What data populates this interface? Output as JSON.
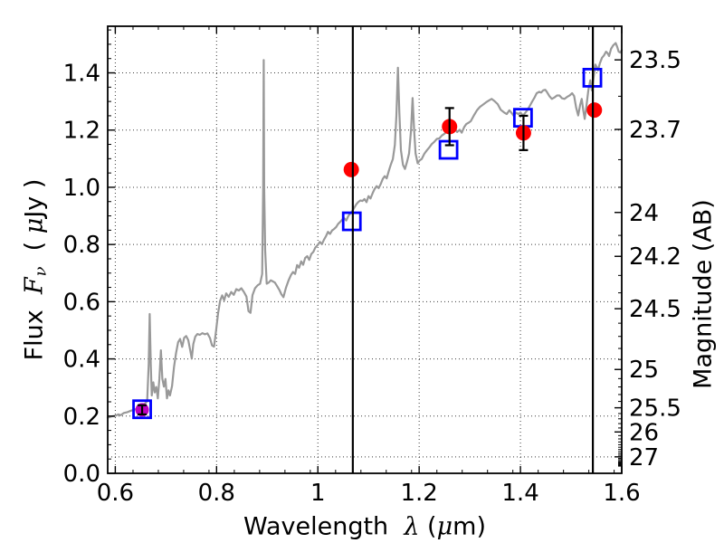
{
  "figure": {
    "background": "#ffffff",
    "xlabel": {
      "t1": "Wavelength  ",
      "m1": "λ",
      "t2": " (",
      "m2": "μ",
      "t3": "m)"
    },
    "ylabel_left": {
      "t1": "Flux  ",
      "f": "F",
      "sub": "ν",
      "t2": "  ( ",
      "mu": "μ",
      "t3": "Jy )"
    },
    "ylabel_right": "Magnitude (AB)"
  },
  "chart_data": {
    "type": "line",
    "title": "",
    "xlabel": "Wavelength λ (μm)",
    "ylabel_left": "Flux Fν ( μJy )",
    "ylabel_right": "Magnitude (AB)",
    "xlim": [
      0.585,
      1.6
    ],
    "ylim_flux": [
      0.0,
      1.563
    ],
    "grid": "dotted",
    "grid_color": "#3a3a3a",
    "frame_color": "#000000",
    "mag_zero_point_uJy": 23.9,
    "axes_rect": [
      119,
      29,
      687,
      523
    ],
    "x_ticks": {
      "values": [
        0.6,
        0.8,
        1.0,
        1.2,
        1.4,
        1.6
      ],
      "labels": [
        "0.6",
        "0.8",
        "1",
        "1.2",
        "1.4",
        "1.6"
      ],
      "minor_step": 0.05
    },
    "y_ticks_left": {
      "values": [
        0.0,
        0.2,
        0.4,
        0.6,
        0.8,
        1.0,
        1.2,
        1.4
      ],
      "labels": [
        "0.0",
        "0.2",
        "0.4",
        "0.6",
        "0.8",
        "1.0",
        "1.2",
        "1.4"
      ],
      "minor_step": 0.05
    },
    "y_ticks_right": {
      "mags": [
        23.5,
        23.7,
        24.0,
        24.2,
        24.5,
        25.0,
        25.5,
        26.0,
        27.0
      ],
      "labels": [
        "23.5",
        "23.7",
        "24",
        "24.2",
        "24.5",
        "25",
        "25.5",
        "26",
        "27"
      ],
      "minor_step": 0.1,
      "grid_mags": [
        27.0
      ]
    },
    "vlines": {
      "x": [
        1.069,
        1.543
      ],
      "color": "#000000",
      "width": 2.2
    },
    "errorbar": {
      "color": "#000000",
      "width": 2.2,
      "cap_halfwidth": 5
    },
    "series": [
      {
        "name": "model-spectrum",
        "kind": "line",
        "color": "#999999",
        "width": 2.2,
        "points": [
          [
            0.585,
            0.195
          ],
          [
            0.593,
            0.199
          ],
          [
            0.6,
            0.201
          ],
          [
            0.606,
            0.206
          ],
          [
            0.611,
            0.203
          ],
          [
            0.617,
            0.211
          ],
          [
            0.624,
            0.214
          ],
          [
            0.631,
            0.219
          ],
          [
            0.638,
            0.223
          ],
          [
            0.645,
            0.227
          ],
          [
            0.652,
            0.231
          ],
          [
            0.658,
            0.243
          ],
          [
            0.663,
            0.252
          ],
          [
            0.666,
            0.38
          ],
          [
            0.668,
            0.557
          ],
          [
            0.67,
            0.38
          ],
          [
            0.672,
            0.272
          ],
          [
            0.675,
            0.318
          ],
          [
            0.678,
            0.283
          ],
          [
            0.681,
            0.302
          ],
          [
            0.684,
            0.262
          ],
          [
            0.687,
            0.33
          ],
          [
            0.69,
            0.43
          ],
          [
            0.693,
            0.33
          ],
          [
            0.696,
            0.303
          ],
          [
            0.699,
            0.33
          ],
          [
            0.702,
            0.262
          ],
          [
            0.705,
            0.29
          ],
          [
            0.708,
            0.272
          ],
          [
            0.712,
            0.305
          ],
          [
            0.716,
            0.372
          ],
          [
            0.72,
            0.42
          ],
          [
            0.724,
            0.458
          ],
          [
            0.728,
            0.47
          ],
          [
            0.732,
            0.442
          ],
          [
            0.736,
            0.474
          ],
          [
            0.74,
            0.48
          ],
          [
            0.744,
            0.466
          ],
          [
            0.748,
            0.43
          ],
          [
            0.751,
            0.401
          ],
          [
            0.754,
            0.452
          ],
          [
            0.758,
            0.478
          ],
          [
            0.762,
            0.487
          ],
          [
            0.767,
            0.484
          ],
          [
            0.772,
            0.49
          ],
          [
            0.777,
            0.486
          ],
          [
            0.782,
            0.489
          ],
          [
            0.787,
            0.473
          ],
          [
            0.791,
            0.447
          ],
          [
            0.795,
            0.443
          ],
          [
            0.799,
            0.5
          ],
          [
            0.803,
            0.56
          ],
          [
            0.807,
            0.603
          ],
          [
            0.811,
            0.622
          ],
          [
            0.815,
            0.605
          ],
          [
            0.819,
            0.629
          ],
          [
            0.824,
            0.617
          ],
          [
            0.829,
            0.634
          ],
          [
            0.834,
            0.624
          ],
          [
            0.839,
            0.644
          ],
          [
            0.844,
            0.639
          ],
          [
            0.849,
            0.647
          ],
          [
            0.854,
            0.634
          ],
          [
            0.859,
            0.618
          ],
          [
            0.863,
            0.567
          ],
          [
            0.867,
            0.561
          ],
          [
            0.871,
            0.623
          ],
          [
            0.876,
            0.647
          ],
          [
            0.881,
            0.657
          ],
          [
            0.886,
            0.663
          ],
          [
            0.89,
            0.697
          ],
          [
            0.892,
            1.0
          ],
          [
            0.893,
            1.445
          ],
          [
            0.894,
            1.0
          ],
          [
            0.896,
            0.78
          ],
          [
            0.899,
            0.663
          ],
          [
            0.903,
            0.667
          ],
          [
            0.907,
            0.675
          ],
          [
            0.911,
            0.671
          ],
          [
            0.915,
            0.667
          ],
          [
            0.919,
            0.656
          ],
          [
            0.924,
            0.641
          ],
          [
            0.928,
            0.626
          ],
          [
            0.932,
            0.616
          ],
          [
            0.937,
            0.649
          ],
          [
            0.942,
            0.674
          ],
          [
            0.947,
            0.694
          ],
          [
            0.951,
            0.704
          ],
          [
            0.955,
            0.697
          ],
          [
            0.959,
            0.728
          ],
          [
            0.963,
            0.719
          ],
          [
            0.967,
            0.741
          ],
          [
            0.971,
            0.729
          ],
          [
            0.975,
            0.753
          ],
          [
            0.979,
            0.759
          ],
          [
            0.983,
            0.746
          ],
          [
            0.987,
            0.767
          ],
          [
            0.991,
            0.774
          ],
          [
            0.995,
            0.789
          ],
          [
            1.0,
            0.799
          ],
          [
            1.004,
            0.809
          ],
          [
            1.008,
            0.801
          ],
          [
            1.012,
            0.817
          ],
          [
            1.016,
            0.829
          ],
          [
            1.02,
            0.844
          ],
          [
            1.024,
            0.837
          ],
          [
            1.028,
            0.849
          ],
          [
            1.032,
            0.854
          ],
          [
            1.036,
            0.861
          ],
          [
            1.04,
            0.872
          ],
          [
            1.044,
            0.879
          ],
          [
            1.048,
            0.887
          ],
          [
            1.052,
            0.892
          ],
          [
            1.056,
            0.884
          ],
          [
            1.06,
            0.899
          ],
          [
            1.064,
            0.909
          ],
          [
            1.068,
            0.917
          ],
          [
            1.072,
            0.929
          ],
          [
            1.076,
            0.941
          ],
          [
            1.08,
            0.949
          ],
          [
            1.084,
            0.954
          ],
          [
            1.088,
            0.952
          ],
          [
            1.092,
            0.959
          ],
          [
            1.096,
            0.948
          ],
          [
            1.1,
            0.969
          ],
          [
            1.104,
            0.961
          ],
          [
            1.108,
            0.979
          ],
          [
            1.112,
            0.994
          ],
          [
            1.116,
            1.004
          ],
          [
            1.12,
            0.997
          ],
          [
            1.124,
            1.011
          ],
          [
            1.128,
            1.029
          ],
          [
            1.132,
            1.039
          ],
          [
            1.136,
            1.031
          ],
          [
            1.14,
            1.057
          ],
          [
            1.144,
            1.079
          ],
          [
            1.148,
            1.099
          ],
          [
            1.152,
            1.148
          ],
          [
            1.155,
            1.25
          ],
          [
            1.158,
            1.418
          ],
          [
            1.161,
            1.26
          ],
          [
            1.164,
            1.13
          ],
          [
            1.168,
            1.078
          ],
          [
            1.172,
            1.064
          ],
          [
            1.176,
            1.088
          ],
          [
            1.18,
            1.118
          ],
          [
            1.184,
            1.2
          ],
          [
            1.187,
            1.312
          ],
          [
            1.19,
            1.2
          ],
          [
            1.193,
            1.118
          ],
          [
            1.197,
            1.084
          ],
          [
            1.201,
            1.094
          ],
          [
            1.205,
            1.099
          ],
          [
            1.21,
            1.117
          ],
          [
            1.215,
            1.129
          ],
          [
            1.22,
            1.139
          ],
          [
            1.225,
            1.151
          ],
          [
            1.23,
            1.159
          ],
          [
            1.235,
            1.169
          ],
          [
            1.24,
            1.171
          ],
          [
            1.245,
            1.181
          ],
          [
            1.25,
            1.187
          ],
          [
            1.255,
            1.195
          ],
          [
            1.26,
            1.199
          ],
          [
            1.265,
            1.204
          ],
          [
            1.27,
            1.207
          ],
          [
            1.275,
            1.193
          ],
          [
            1.28,
            1.201
          ],
          [
            1.284,
            1.191
          ],
          [
            1.289,
            1.211
          ],
          [
            1.293,
            1.221
          ],
          [
            1.298,
            1.226
          ],
          [
            1.302,
            1.231
          ],
          [
            1.308,
            1.251
          ],
          [
            1.314,
            1.269
          ],
          [
            1.32,
            1.281
          ],
          [
            1.326,
            1.289
          ],
          [
            1.332,
            1.297
          ],
          [
            1.338,
            1.304
          ],
          [
            1.343,
            1.309
          ],
          [
            1.349,
            1.301
          ],
          [
            1.355,
            1.291
          ],
          [
            1.361,
            1.271
          ],
          [
            1.368,
            1.261
          ],
          [
            1.373,
            1.256
          ],
          [
            1.378,
            1.269
          ],
          [
            1.383,
            1.259
          ],
          [
            1.387,
            1.249
          ],
          [
            1.391,
            1.261
          ],
          [
            1.396,
            1.256
          ],
          [
            1.4,
            1.261
          ],
          [
            1.405,
            1.251
          ],
          [
            1.409,
            1.259
          ],
          [
            1.414,
            1.271
          ],
          [
            1.419,
            1.286
          ],
          [
            1.423,
            1.299
          ],
          [
            1.428,
            1.314
          ],
          [
            1.432,
            1.329
          ],
          [
            1.437,
            1.334
          ],
          [
            1.441,
            1.331
          ],
          [
            1.445,
            1.339
          ],
          [
            1.449,
            1.341
          ],
          [
            1.452,
            1.334
          ],
          [
            1.457,
            1.319
          ],
          [
            1.462,
            1.309
          ],
          [
            1.467,
            1.314
          ],
          [
            1.472,
            1.321
          ],
          [
            1.477,
            1.321
          ],
          [
            1.482,
            1.311
          ],
          [
            1.487,
            1.309
          ],
          [
            1.492,
            1.316
          ],
          [
            1.497,
            1.321
          ],
          [
            1.502,
            1.329
          ],
          [
            1.506,
            1.319
          ],
          [
            1.51,
            1.279
          ],
          [
            1.514,
            1.251
          ],
          [
            1.518,
            1.289
          ],
          [
            1.521,
            1.309
          ],
          [
            1.524,
            1.269
          ],
          [
            1.527,
            1.239
          ],
          [
            1.53,
            1.279
          ],
          [
            1.534,
            1.339
          ],
          [
            1.538,
            1.374
          ],
          [
            1.541,
            1.339
          ],
          [
            1.544,
            1.379
          ],
          [
            1.548,
            1.429
          ],
          [
            1.551,
            1.419
          ],
          [
            1.553,
            1.409
          ],
          [
            1.557,
            1.434
          ],
          [
            1.561,
            1.453
          ],
          [
            1.565,
            1.461
          ],
          [
            1.569,
            1.474
          ],
          [
            1.572,
            1.469
          ],
          [
            1.575,
            1.459
          ],
          [
            1.579,
            1.484
          ],
          [
            1.583,
            1.496
          ],
          [
            1.588,
            1.504
          ],
          [
            1.591,
            1.491
          ],
          [
            1.594,
            1.474
          ],
          [
            1.597,
            1.471
          ],
          [
            1.6,
            1.479
          ]
        ]
      },
      {
        "name": "observed-photometry-red",
        "kind": "scatter-circle",
        "color": "#ff0000",
        "radius": 8.5,
        "points": [
          {
            "x": 1.066,
            "y": 1.062,
            "err": null
          },
          {
            "x": 1.26,
            "y": 1.212,
            "err": 0.065
          },
          {
            "x": 1.406,
            "y": 1.19,
            "err": 0.06
          },
          {
            "x": 1.546,
            "y": 1.27,
            "err": null
          }
        ]
      },
      {
        "name": "observed-photometry-magenta",
        "kind": "scatter-circle",
        "color": "#bf00bf",
        "radius": 7.5,
        "points": [
          {
            "x": 0.653,
            "y": 0.222,
            "err": 0.016
          }
        ]
      },
      {
        "name": "model-photometry-squares",
        "kind": "scatter-square-open",
        "color": "#0000ff",
        "size": 19,
        "stroke": 2.8,
        "points": [
          {
            "x": 0.653,
            "y": 0.224
          },
          {
            "x": 1.067,
            "y": 0.881
          },
          {
            "x": 1.258,
            "y": 1.131
          },
          {
            "x": 1.405,
            "y": 1.243
          },
          {
            "x": 1.542,
            "y": 1.383
          }
        ]
      }
    ]
  }
}
